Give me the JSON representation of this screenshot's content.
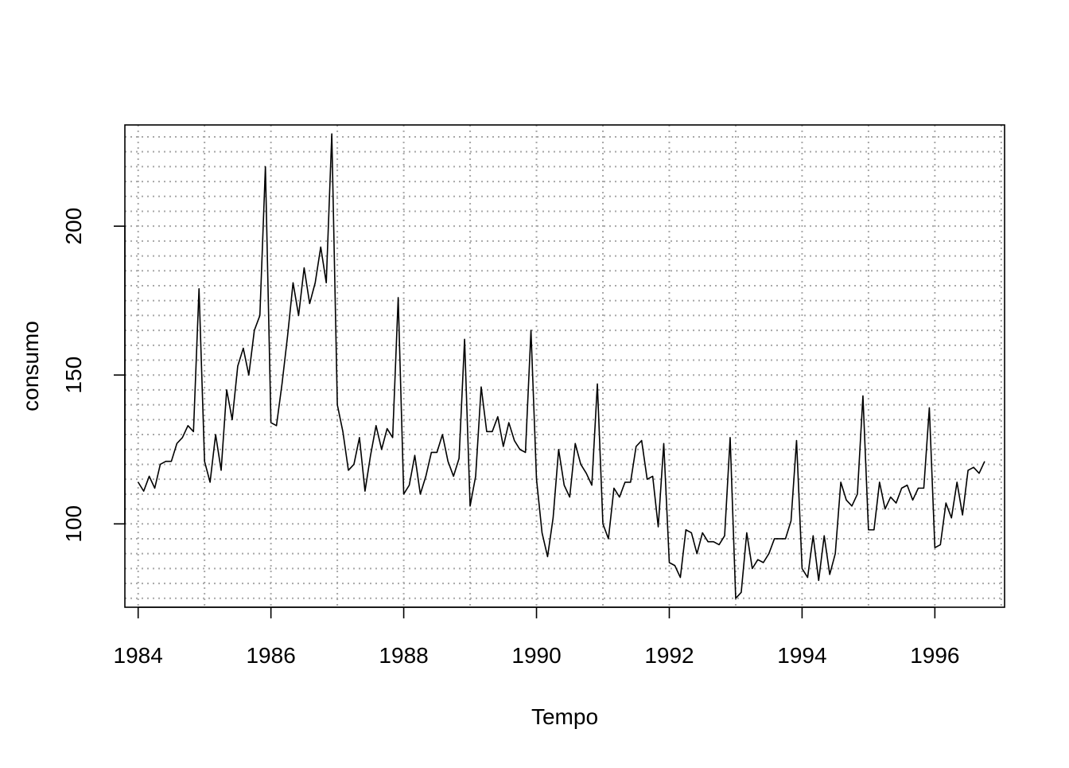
{
  "chart_data": {
    "type": "line",
    "title": "",
    "xlabel": "Tempo",
    "ylabel": "consumo",
    "xlim": [
      1983.8,
      1997.05
    ],
    "ylim": [
      72,
      234
    ],
    "x_ticks": [
      1984,
      1986,
      1988,
      1990,
      1992,
      1994,
      1996
    ],
    "x_tick_labels": [
      "1984",
      "1986",
      "1988",
      "1990",
      "1992",
      "1994",
      "1996"
    ],
    "y_ticks": [
      100,
      150,
      200
    ],
    "y_tick_labels": [
      "100",
      "150",
      "200"
    ],
    "grid": true,
    "x_grid_step": 1,
    "y_grid_step": 5,
    "start": 1984.0,
    "frequency": 12,
    "series": [
      {
        "values": [
          114,
          111,
          116,
          112,
          120,
          121,
          121,
          127,
          129,
          133,
          131,
          179,
          121,
          114,
          130,
          118,
          145,
          135,
          153,
          159,
          150,
          165,
          170,
          220,
          134,
          133,
          147,
          163,
          181,
          170,
          186,
          174,
          181,
          193,
          181,
          231,
          140,
          131,
          118,
          120,
          129,
          111,
          123,
          133,
          125,
          132,
          129,
          176,
          110,
          113,
          123,
          110,
          116,
          124,
          124,
          130,
          121,
          116,
          122,
          162,
          106,
          116,
          146,
          131,
          131,
          136,
          126,
          134,
          128,
          125,
          124,
          165,
          115,
          97,
          89,
          102,
          125,
          113,
          109,
          127,
          120,
          117,
          113,
          147,
          100,
          95,
          112,
          109,
          114,
          114,
          126,
          128,
          115,
          116,
          99,
          127,
          87,
          86,
          82,
          98,
          97,
          90,
          97,
          94,
          94,
          93,
          96,
          129,
          75,
          77,
          97,
          85,
          88,
          87,
          90,
          95,
          95,
          95,
          101,
          128,
          85,
          82,
          96,
          81,
          96,
          83,
          90,
          114,
          108,
          106,
          110,
          143,
          98,
          98,
          114,
          105,
          109,
          107,
          112,
          113,
          108,
          112,
          112,
          139,
          92,
          93,
          107,
          102,
          114,
          103,
          118,
          119,
          117,
          121
        ]
      }
    ]
  }
}
